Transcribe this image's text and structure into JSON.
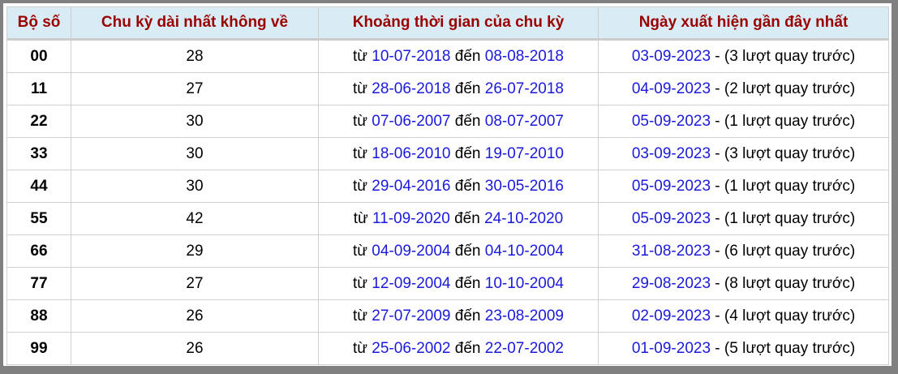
{
  "headers": [
    "Bộ số",
    "Chu kỳ dài nhất không về",
    "Khoảng thời gian của chu kỳ",
    "Ngày xuất hiện gần đây nhất"
  ],
  "labels": {
    "from": "từ",
    "to": "đến",
    "dash": " - "
  },
  "rows": [
    {
      "so": "00",
      "chu_ky": "28",
      "from": "10-07-2018",
      "to": "08-08-2018",
      "last": "03-09-2023",
      "note": "(3 lượt quay trước)"
    },
    {
      "so": "11",
      "chu_ky": "27",
      "from": "28-06-2018",
      "to": "26-07-2018",
      "last": "04-09-2023",
      "note": "(2 lượt quay trước)"
    },
    {
      "so": "22",
      "chu_ky": "30",
      "from": "07-06-2007",
      "to": "08-07-2007",
      "last": "05-09-2023",
      "note": "(1 lượt quay trước)"
    },
    {
      "so": "33",
      "chu_ky": "30",
      "from": "18-06-2010",
      "to": "19-07-2010",
      "last": "03-09-2023",
      "note": "(3 lượt quay trước)"
    },
    {
      "so": "44",
      "chu_ky": "30",
      "from": "29-04-2016",
      "to": "30-05-2016",
      "last": "05-09-2023",
      "note": "(1 lượt quay trước)"
    },
    {
      "so": "55",
      "chu_ky": "42",
      "from": "11-09-2020",
      "to": "24-10-2020",
      "last": "05-09-2023",
      "note": "(1 lượt quay trước)"
    },
    {
      "so": "66",
      "chu_ky": "29",
      "from": "04-09-2004",
      "to": "04-10-2004",
      "last": "31-08-2023",
      "note": "(6 lượt quay trước)"
    },
    {
      "so": "77",
      "chu_ky": "27",
      "from": "12-09-2004",
      "to": "10-10-2004",
      "last": "29-08-2023",
      "note": "(8 lượt quay trước)"
    },
    {
      "so": "88",
      "chu_ky": "26",
      "from": "27-07-2009",
      "to": "23-08-2009",
      "last": "02-09-2023",
      "note": "(4 lượt quay trước)"
    },
    {
      "so": "99",
      "chu_ky": "26",
      "from": "25-06-2002",
      "to": "22-07-2002",
      "last": "01-09-2023",
      "note": "(5 lượt quay trước)"
    }
  ],
  "colors": {
    "header_bg": "#d9ecf5",
    "header_text": "#9b0000",
    "link": "#1a1adc"
  }
}
